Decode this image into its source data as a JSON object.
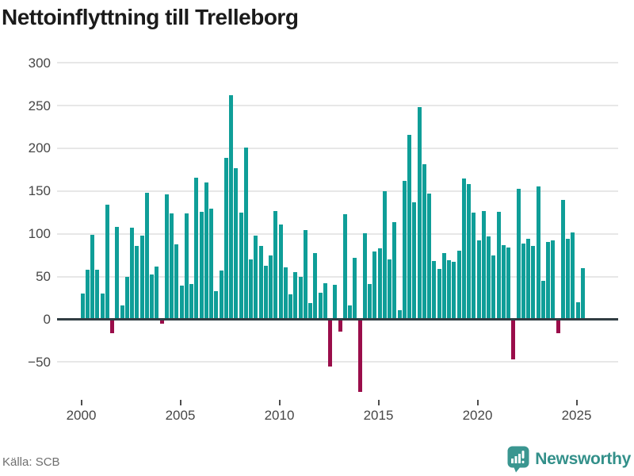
{
  "header": {
    "title": "Nettoinflyttning till Trelleborg"
  },
  "footer": {
    "source": "Källa: SCB",
    "brand_name": "Newsworthy"
  },
  "colors": {
    "positive_bar": "#0f9e98",
    "negative_bar": "#9a0d4a",
    "grid": "#e7e7e7",
    "zero_line": "#313d43",
    "brand_teal": "#33908a",
    "axis_text": "#474747",
    "title_text": "#1b1b1b"
  },
  "chart_data": {
    "type": "bar",
    "title": "Nettoinflyttning till Trelleborg",
    "frequency": "quarterly",
    "x_start": "2000-Q1",
    "x_end": "2025-Q2",
    "x_tick_labels": [
      "2000",
      "2005",
      "2010",
      "2015",
      "2020",
      "2025"
    ],
    "x_tick_years": [
      2000,
      2005,
      2010,
      2015,
      2020,
      2025
    ],
    "y_ticks": [
      300,
      250,
      200,
      150,
      100,
      50,
      0,
      -50
    ],
    "y_tick_labels": [
      "300",
      "250",
      "200",
      "150",
      "100",
      "50",
      "0",
      "−50"
    ],
    "ylim": [
      -90,
      300
    ],
    "grid": true,
    "legend": "none",
    "values": [
      30,
      58,
      99,
      58,
      30,
      134,
      -16,
      108,
      16,
      50,
      107,
      86,
      98,
      148,
      52,
      62,
      -5,
      146,
      124,
      88,
      39,
      124,
      41,
      166,
      126,
      160,
      129,
      33,
      57,
      189,
      262,
      177,
      125,
      201,
      70,
      98,
      86,
      63,
      75,
      127,
      111,
      61,
      29,
      55,
      50,
      104,
      19,
      77,
      31,
      42,
      -55,
      40,
      -14,
      123,
      16,
      72,
      -85,
      101,
      41,
      79,
      83,
      150,
      70,
      114,
      11,
      162,
      216,
      137,
      248,
      181,
      147,
      68,
      59,
      77,
      69,
      67,
      80,
      165,
      158,
      125,
      92,
      127,
      97,
      75,
      126,
      87,
      84,
      -47,
      153,
      89,
      94,
      86,
      155,
      45,
      90,
      92,
      -16,
      140,
      94,
      102,
      20,
      60
    ]
  }
}
